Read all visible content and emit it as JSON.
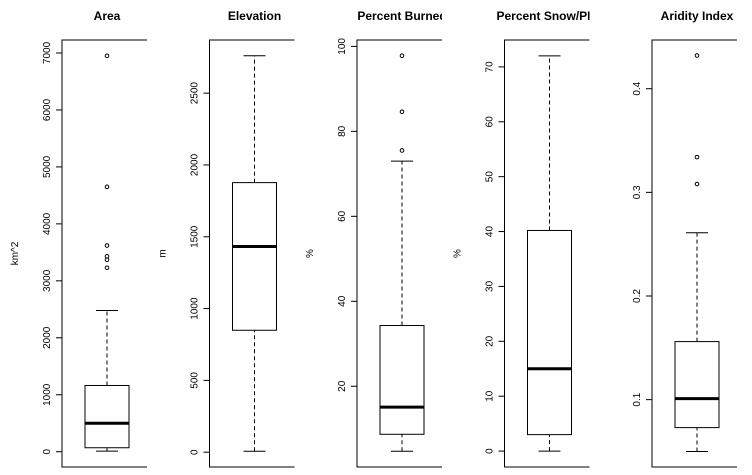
{
  "chart_data": [
    {
      "type": "box",
      "title": "Area",
      "ylabel": "km^2",
      "whisker_low": 10,
      "q1": 70,
      "median": 500,
      "q3": 1163,
      "whisker_high": 2480,
      "outliers": [
        3230,
        3370,
        3430,
        3620,
        4650,
        6950
      ],
      "ylim": [
        -268,
        7228
      ],
      "yticks": [
        0,
        1000,
        2000,
        3000,
        4000,
        5000,
        6000,
        7000
      ]
    },
    {
      "type": "box",
      "title": "Elevation",
      "ylabel": "m",
      "whisker_low": 7,
      "q1": 849,
      "median": 1432,
      "q3": 1877,
      "whisker_high": 2760,
      "outliers": [],
      "ylim": [
        -103,
        2870
      ],
      "yticks": [
        0,
        500,
        1000,
        1500,
        2000,
        2500
      ]
    },
    {
      "type": "box",
      "title": "Percent Burned",
      "ylabel": "%",
      "whisker_low": 4.7,
      "q1": 8.7,
      "median": 15.1,
      "q3": 34.3,
      "whisker_high": 73,
      "outliers": [
        75.5,
        84.6,
        97.8
      ],
      "ylim": [
        1.0,
        101.5
      ],
      "yticks": [
        20,
        40,
        60,
        80,
        100
      ]
    },
    {
      "type": "box",
      "title": "Percent Snow/PPT",
      "ylabel": "%",
      "whisker_low": 0,
      "q1": 3.0,
      "median": 15.0,
      "q3": 40.2,
      "whisker_high": 72,
      "outliers": [],
      "ylim": [
        -2.9,
        74.9
      ],
      "yticks": [
        0,
        10,
        20,
        30,
        40,
        50,
        60,
        70
      ]
    },
    {
      "type": "box",
      "title": "Aridity Index",
      "whisker_low": 0.05,
      "q1": 0.073,
      "median": 0.101,
      "q3": 0.156,
      "whisker_high": 0.261,
      "outliers": [
        0.308,
        0.334,
        0.432
      ],
      "ylim": [
        0.035,
        0.447
      ],
      "yticks": [
        0.1,
        0.2,
        0.3,
        0.4
      ]
    }
  ]
}
